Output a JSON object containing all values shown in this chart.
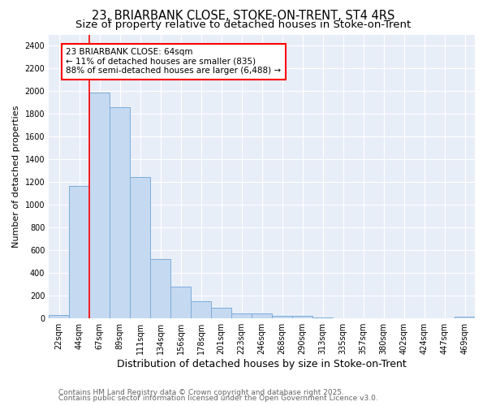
{
  "title_line1": "23, BRIARBANK CLOSE, STOKE-ON-TRENT, ST4 4RS",
  "title_line2": "Size of property relative to detached houses in Stoke-on-Trent",
  "xlabel": "Distribution of detached houses by size in Stoke-on-Trent",
  "ylabel": "Number of detached properties",
  "categories": [
    "22sqm",
    "44sqm",
    "67sqm",
    "89sqm",
    "111sqm",
    "134sqm",
    "156sqm",
    "178sqm",
    "201sqm",
    "223sqm",
    "246sqm",
    "268sqm",
    "290sqm",
    "313sqm",
    "335sqm",
    "357sqm",
    "380sqm",
    "402sqm",
    "424sqm",
    "447sqm",
    "469sqm"
  ],
  "values": [
    30,
    1170,
    1990,
    1860,
    1245,
    520,
    280,
    155,
    95,
    45,
    45,
    20,
    20,
    10,
    5,
    5,
    5,
    3,
    5,
    3,
    15
  ],
  "bar_color": "#c5d9f0",
  "bar_edge_color": "#7aaddb",
  "red_line_x": 2.0,
  "annotation_text": "23 BRIARBANK CLOSE: 64sqm\n← 11% of detached houses are smaller (835)\n88% of semi-detached houses are larger (6,488) →",
  "annotation_box_color": "white",
  "annotation_box_edge_color": "red",
  "footer_line1": "Contains HM Land Registry data © Crown copyright and database right 2025.",
  "footer_line2": "Contains public sector information licensed under the Open Government Licence v3.0.",
  "ylim": [
    0,
    2500
  ],
  "yticks": [
    0,
    200,
    400,
    600,
    800,
    1000,
    1200,
    1400,
    1600,
    1800,
    2000,
    2200,
    2400
  ],
  "background_color": "#e8eef8",
  "grid_color": "white",
  "title_fontsize": 10.5,
  "subtitle_fontsize": 9.5,
  "ylabel_fontsize": 8,
  "xlabel_fontsize": 9,
  "tick_fontsize": 7,
  "footer_fontsize": 6.5,
  "annotation_fontsize": 7.5
}
